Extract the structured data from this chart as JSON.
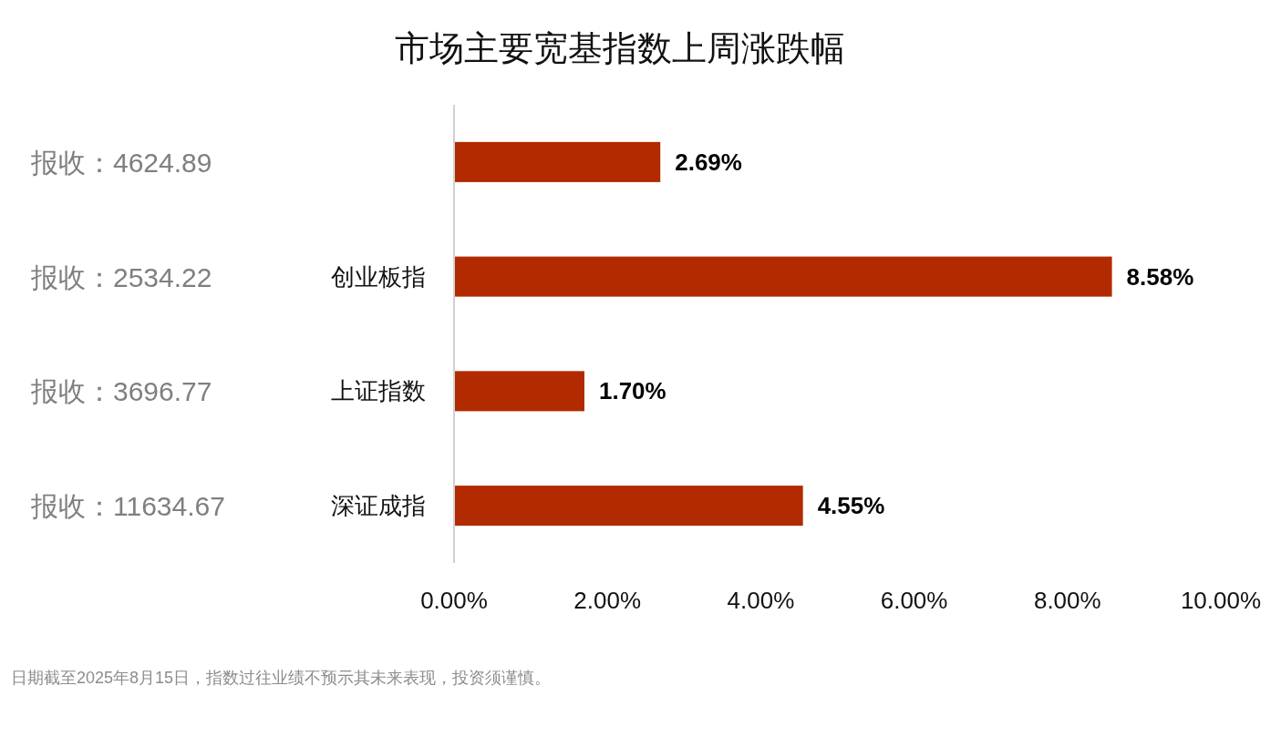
{
  "chart_data": {
    "type": "bar",
    "orientation": "horizontal",
    "title": "市场主要宽基指数上周涨跌幅",
    "categories": [
      null,
      "创业板指",
      "上证指数",
      "深证成指"
    ],
    "values": [
      2.69,
      8.58,
      1.7,
      4.55
    ],
    "value_labels": [
      "2.69%",
      "8.58%",
      "1.70%",
      "4.55%"
    ],
    "color": "#b22a00",
    "xlim": [
      0,
      10
    ],
    "xticks": [
      {
        "value": 0,
        "label": "0.00%"
      },
      {
        "value": 2,
        "label": "2.00%"
      },
      {
        "value": 4,
        "label": "4.00%"
      },
      {
        "value": 6,
        "label": "6.00%"
      },
      {
        "value": 8,
        "label": "8.00%"
      },
      {
        "value": 10,
        "label": "10.00%"
      }
    ],
    "grid": false,
    "annotations": [
      "报收：4624.89",
      "报收：2534.22",
      "报收：3696.77",
      "报收：11634.67",
      "日期截至2025年8月15日，指数过往业绩不预示其未来表现，投资须谨慎。"
    ]
  }
}
